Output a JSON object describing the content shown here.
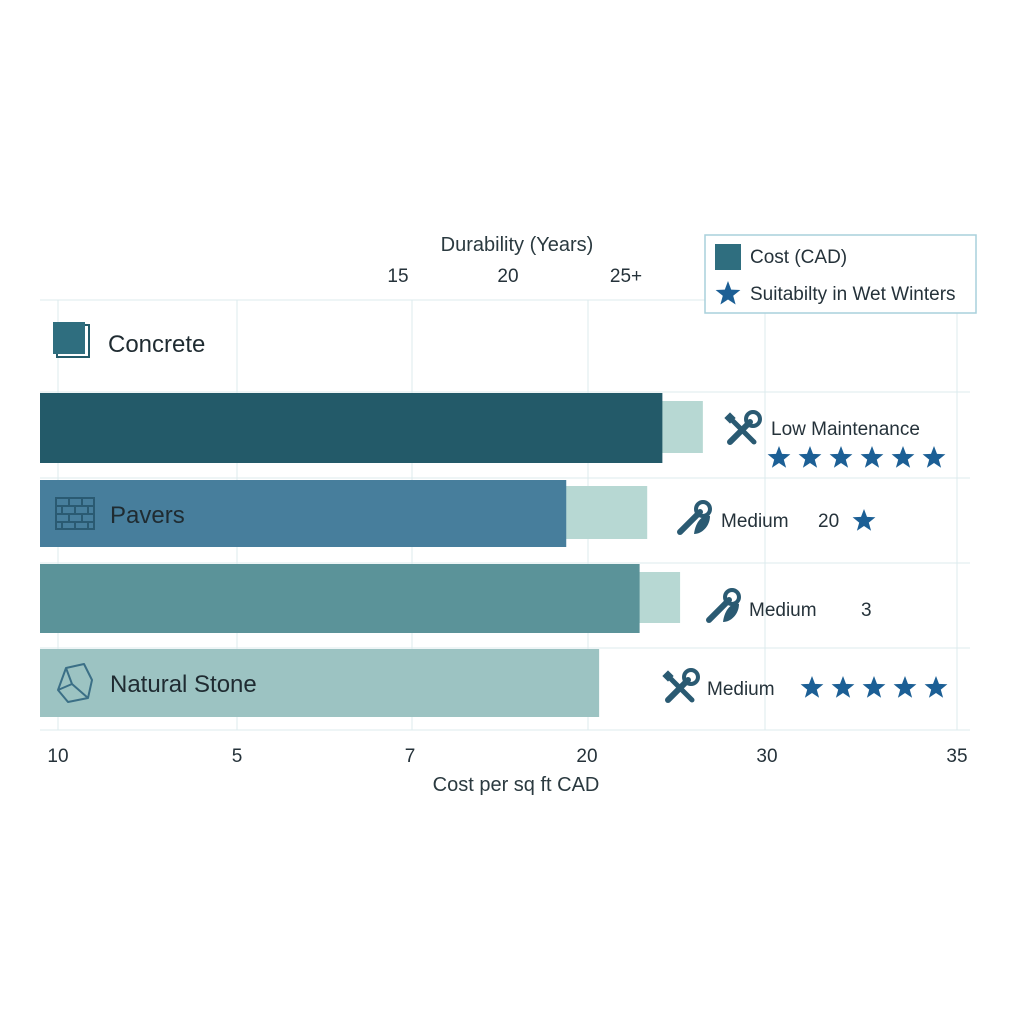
{
  "chart_data": {
    "type": "bar",
    "orientation": "horizontal",
    "top_axis": {
      "label": "Durability (Years)",
      "ticks": [
        "15",
        "20",
        "25+"
      ]
    },
    "bottom_axis": {
      "label": "Cost per sq ft CAD",
      "ticks": [
        "10",
        "5",
        "7",
        "20",
        "30",
        "35"
      ]
    },
    "legend": {
      "placement": "top-right",
      "entries": [
        {
          "label": "Cost (CAD)",
          "color": "#2f6e7f",
          "marker": "square"
        },
        {
          "label": "Suitabilty in Wet Winters",
          "color": "#1c5f95",
          "marker": "star"
        }
      ]
    },
    "categories": [
      {
        "name": "Concrete",
        "icon": "square-block-icon",
        "cost": 24.6,
        "durability_overlay": 26.2,
        "bar_color": "#235a69",
        "maintenance": "Low Maintenance",
        "maintenance_icon": "wrench-screwdriver-icon",
        "rating_text": "",
        "stars": 6
      },
      {
        "name": "Pavers",
        "icon": "brick-icon",
        "cost": 20.8,
        "durability_overlay": 24.0,
        "bar_color": "#477e9c",
        "maintenance": "Medium",
        "maintenance_icon": "wrench-leaf-icon",
        "rating_text": "20",
        "stars": 1
      },
      {
        "name": "",
        "icon": "",
        "cost": 23.7,
        "durability_overlay": 25.3,
        "bar_color": "#5b9399",
        "maintenance": "Medium",
        "maintenance_icon": "wrench-leaf-icon",
        "rating_text": "3",
        "stars": 0
      },
      {
        "name": "Natural Stone",
        "icon": "stone-icon",
        "cost": 22.1,
        "durability_overlay": null,
        "bar_color": "#9cc3c2",
        "maintenance": "Medium",
        "maintenance_icon": "wrench-screwdriver-icon",
        "rating_text": "",
        "stars": 5
      }
    ],
    "overlay_color": "#b7d8d3",
    "star_color": "#1c5f95",
    "grid": true
  }
}
